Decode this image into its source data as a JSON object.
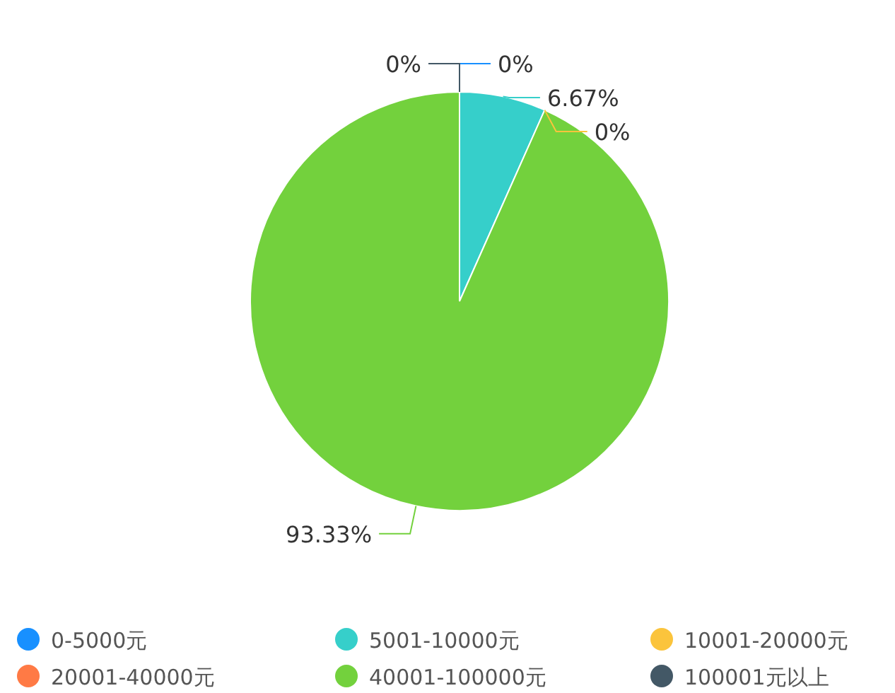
{
  "chart_data": {
    "type": "pie",
    "categories": [
      "0-5000元",
      "5001-10000元",
      "10001-20000元",
      "20001-40000元",
      "40001-100000元",
      "100001元以上"
    ],
    "values": [
      0,
      6.67,
      0,
      0,
      93.33,
      0
    ],
    "colors": [
      "#1890ff",
      "#36cfca",
      "#fbc43c",
      "#ff7a45",
      "#73d13d",
      "#435866"
    ],
    "value_labels": [
      "0%",
      "6.67%",
      "0%",
      null,
      "93.33%",
      "0%"
    ],
    "legend": "bottom"
  }
}
